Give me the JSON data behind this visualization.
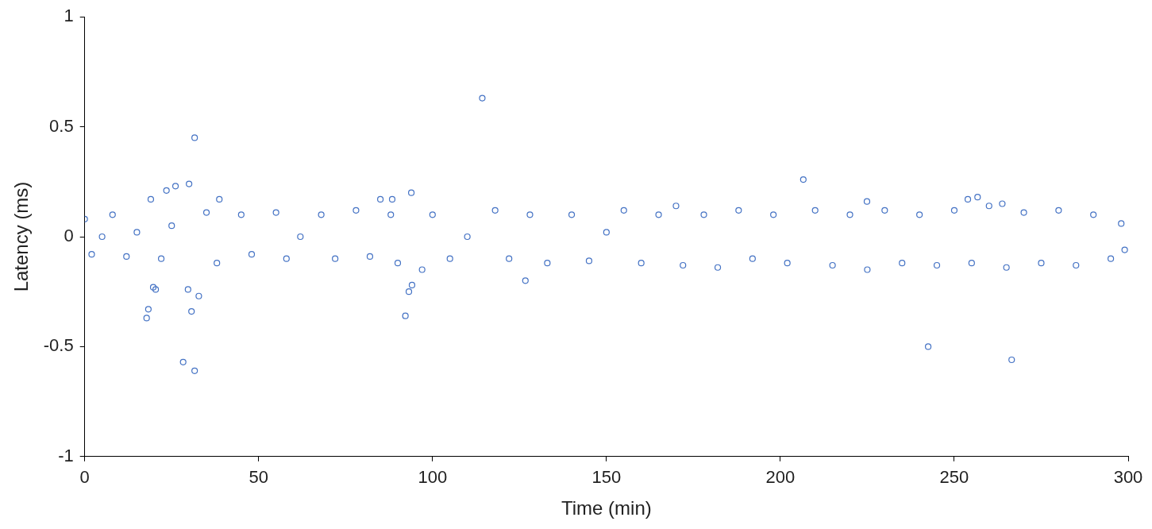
{
  "chart_data": {
    "type": "scatter",
    "xlabel": "Time (min)",
    "ylabel": "Latency (ms)",
    "xlim": [
      0,
      300
    ],
    "xticks": [
      0,
      50,
      100,
      150,
      200,
      250,
      300
    ],
    "ylim": [
      -1,
      1
    ],
    "yticks": [
      -1,
      -0.5,
      0,
      0.5,
      1
    ],
    "grid": false,
    "legend": false,
    "marker": "circle",
    "series": [
      {
        "color": "#4472c4",
        "x": [
          0,
          2,
          5,
          8,
          12,
          15,
          22,
          25,
          35,
          38,
          45,
          48,
          55,
          58,
          62,
          68,
          72,
          78,
          82,
          88,
          90,
          97,
          100,
          105,
          110,
          118,
          122,
          128,
          133,
          140,
          145,
          150,
          155,
          160,
          165,
          170,
          172,
          178,
          182,
          188,
          192,
          198,
          202,
          210,
          215,
          220,
          225,
          230,
          235,
          240,
          245,
          250,
          255,
          260,
          265,
          270,
          275,
          280,
          285,
          290,
          295,
          298,
          299,
          114.3,
          31.6,
          28.3,
          31.6,
          242.5,
          266.5,
          206.6,
          92.2,
          17.8,
          18.3,
          30,
          26.1,
          23.5,
          19,
          32.8,
          30.7,
          29.7,
          19.7,
          20.4,
          93.9,
          93.2,
          94.1,
          38.7,
          85,
          88.4,
          224.9,
          126.7,
          263.8,
          253.9,
          256.7
        ],
        "values": [
          0.08,
          -0.08,
          0,
          0.1,
          -0.09,
          0.02,
          -0.1,
          0.05,
          0.11,
          -0.12,
          0.1,
          -0.08,
          0.11,
          -0.1,
          0,
          0.1,
          -0.1,
          0.12,
          -0.09,
          0.1,
          -0.12,
          -0.15,
          0.1,
          -0.1,
          0,
          0.12,
          -0.1,
          0.1,
          -0.12,
          0.1,
          -0.11,
          0.02,
          0.12,
          -0.12,
          0.1,
          0.14,
          -0.13,
          0.1,
          -0.14,
          0.12,
          -0.1,
          0.1,
          -0.12,
          0.12,
          -0.13,
          0.1,
          -0.15,
          0.12,
          -0.12,
          0.1,
          -0.13,
          0.12,
          -0.12,
          0.14,
          -0.14,
          0.11,
          -0.12,
          0.12,
          -0.13,
          0.1,
          -0.1,
          0.06,
          -0.06,
          0.63,
          0.45,
          -0.57,
          -0.61,
          -0.5,
          -0.56,
          0.26,
          -0.36,
          -0.37,
          -0.33,
          0.24,
          0.23,
          0.21,
          0.17,
          -0.27,
          -0.34,
          -0.24,
          -0.23,
          -0.24,
          0.2,
          -0.25,
          -0.22,
          0.17,
          0.17,
          0.17,
          0.16,
          -0.2,
          0.15,
          0.17,
          0.18
        ]
      }
    ]
  }
}
